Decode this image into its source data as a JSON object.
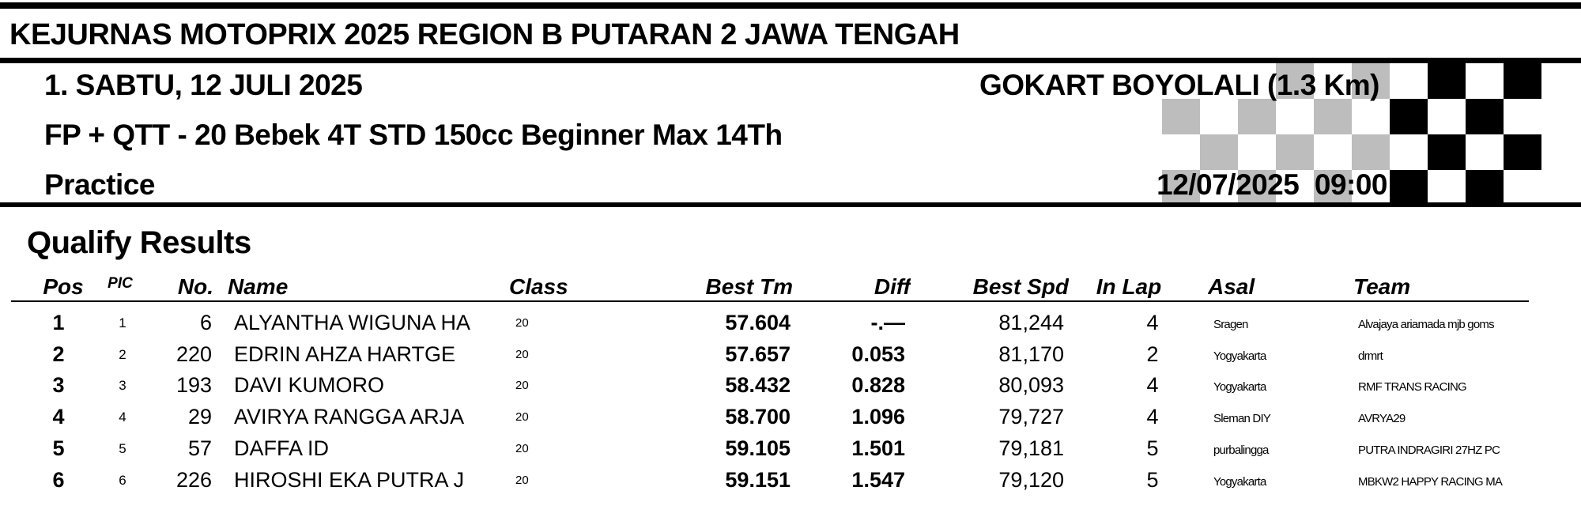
{
  "header": {
    "title": "KEJURNAS MOTOPRIX 2025 REGION B PUTARAN 2 JAWA TENGAH",
    "date_line": "1. SABTU, 12 JULI 2025",
    "venue": "GOKART BOYOLALI (1.3 Km)",
    "event": "FP + QTT - 20 Bebek 4T STD 150cc Beginner Max 14Th",
    "session": "Practice",
    "datetime": "12/07/2025  09:00"
  },
  "section_title": "Qualify Results",
  "table": {
    "columns": [
      "Pos",
      "PIC",
      "No.",
      "Name",
      "Class",
      "Best Tm",
      "Diff",
      "Best Spd",
      "In Lap",
      "Asal",
      "Team"
    ],
    "rows": [
      [
        "1",
        "1",
        "6",
        "ALYANTHA WIGUNA HA",
        "20",
        "57.604",
        "-.—",
        "81,244",
        "4",
        "Sragen",
        "Alvajaya ariamada mjb goms"
      ],
      [
        "2",
        "2",
        "220",
        "EDRIN AHZA HARTGE",
        "20",
        "57.657",
        "0.053",
        "81,170",
        "2",
        "Yogyakarta",
        "drmrt"
      ],
      [
        "3",
        "3",
        "193",
        "DAVI KUMORO",
        "20",
        "58.432",
        "0.828",
        "80,093",
        "4",
        "Yogyakarta",
        "RMF TRANS RACING"
      ],
      [
        "4",
        "4",
        "29",
        "AVIRYA RANGGA ARJA",
        "20",
        "58.700",
        "1.096",
        "79,727",
        "4",
        "Sleman DIY",
        "AVRYA29"
      ],
      [
        "5",
        "5",
        "57",
        "DAFFA ID",
        "20",
        "59.105",
        "1.501",
        "79,181",
        "5",
        "purbalingga",
        "PUTRA INDRAGIRI 27HZ PC"
      ],
      [
        "6",
        "6",
        "226",
        "HIROSHI EKA PUTRA J",
        "20",
        "59.151",
        "1.547",
        "79,120",
        "5",
        "Yogyakarta",
        "MBKW2 HAPPY RACING MA"
      ]
    ]
  }
}
